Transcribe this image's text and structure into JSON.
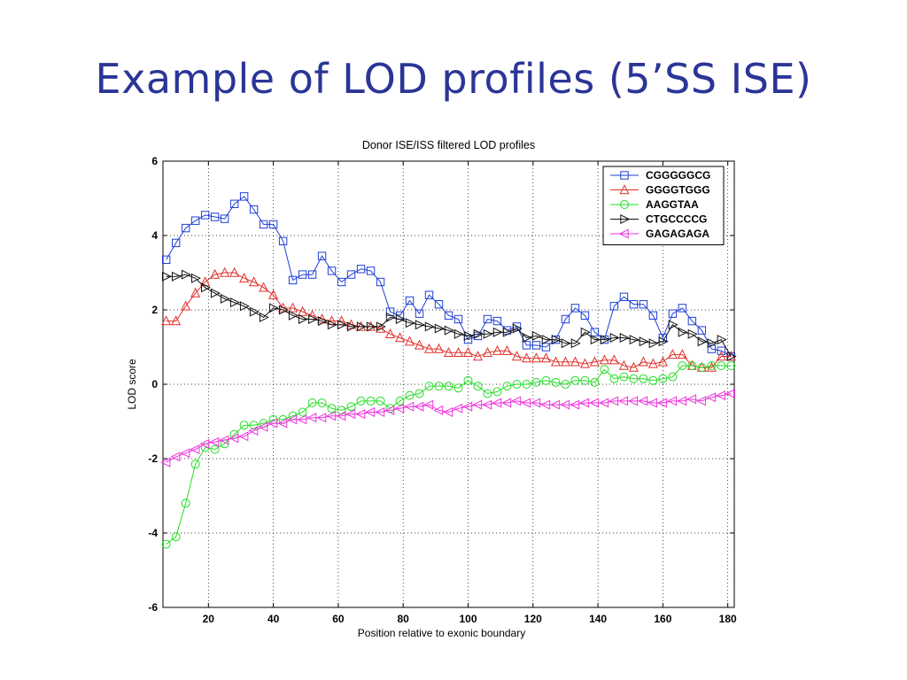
{
  "slide": {
    "title": "Example of LOD profiles (5’SS ISE)"
  },
  "chart_data": {
    "type": "line",
    "title": "Donor ISE/ISS filtered LOD profiles",
    "xlabel": "Position relative to exonic boundary",
    "ylabel": "LOD score",
    "xlim": [
      6,
      182
    ],
    "ylim": [
      -6,
      6
    ],
    "xticks": [
      20,
      40,
      60,
      80,
      100,
      120,
      140,
      160,
      180
    ],
    "yticks": [
      -6,
      -4,
      -2,
      0,
      2,
      4,
      6
    ],
    "grid": true,
    "legend_position": "top-right",
    "x": [
      7,
      10,
      13,
      16,
      19,
      22,
      25,
      28,
      31,
      34,
      37,
      40,
      43,
      46,
      49,
      52,
      55,
      58,
      61,
      64,
      67,
      70,
      73,
      76,
      79,
      82,
      85,
      88,
      91,
      94,
      97,
      100,
      103,
      106,
      109,
      112,
      115,
      118,
      121,
      124,
      127,
      130,
      133,
      136,
      139,
      142,
      145,
      148,
      151,
      154,
      157,
      160,
      163,
      166,
      169,
      172,
      175,
      178,
      181
    ],
    "series": [
      {
        "name": "CGGGGGCG",
        "color": "#1f3fd6",
        "marker": "square",
        "values": [
          3.35,
          3.8,
          4.2,
          4.4,
          4.55,
          4.5,
          4.45,
          4.85,
          5.05,
          4.7,
          4.3,
          4.3,
          3.85,
          2.8,
          2.95,
          2.95,
          3.45,
          3.05,
          2.75,
          2.95,
          3.1,
          3.05,
          2.75,
          1.95,
          1.85,
          2.25,
          1.9,
          2.4,
          2.15,
          1.85,
          1.75,
          1.2,
          1.3,
          1.75,
          1.7,
          1.45,
          1.55,
          1.05,
          1.05,
          1.0,
          1.2,
          1.75,
          2.05,
          1.85,
          1.4,
          1.2,
          2.1,
          2.35,
          2.15,
          2.15,
          1.85,
          1.25,
          1.9,
          2.05,
          1.7,
          1.45,
          0.95,
          0.9,
          0.75
        ]
      },
      {
        "name": "GGGGTGGG",
        "color": "#e0302a",
        "marker": "triangle-up",
        "values": [
          1.7,
          1.7,
          2.1,
          2.45,
          2.75,
          2.95,
          3.0,
          3.0,
          2.85,
          2.75,
          2.6,
          2.4,
          2.05,
          2.05,
          1.95,
          1.85,
          1.75,
          1.7,
          1.7,
          1.6,
          1.55,
          1.55,
          1.5,
          1.35,
          1.25,
          1.15,
          1.05,
          0.95,
          0.95,
          0.85,
          0.85,
          0.85,
          0.75,
          0.85,
          0.9,
          0.9,
          0.75,
          0.7,
          0.7,
          0.7,
          0.6,
          0.6,
          0.6,
          0.55,
          0.6,
          0.65,
          0.65,
          0.5,
          0.45,
          0.6,
          0.55,
          0.6,
          0.8,
          0.8,
          0.5,
          0.45,
          0.45,
          0.75,
          0.75
        ]
      },
      {
        "name": "AAGGTAA",
        "color": "#22dd22",
        "marker": "circle",
        "values": [
          -4.3,
          -4.1,
          -3.2,
          -2.15,
          -1.7,
          -1.75,
          -1.6,
          -1.35,
          -1.1,
          -1.1,
          -1.05,
          -0.95,
          -0.95,
          -0.85,
          -0.75,
          -0.5,
          -0.5,
          -0.65,
          -0.7,
          -0.6,
          -0.45,
          -0.45,
          -0.45,
          -0.65,
          -0.45,
          -0.3,
          -0.25,
          -0.05,
          -0.05,
          -0.05,
          -0.1,
          0.1,
          -0.05,
          -0.25,
          -0.2,
          -0.05,
          0.0,
          0.0,
          0.05,
          0.1,
          0.05,
          0.0,
          0.1,
          0.1,
          0.05,
          0.4,
          0.15,
          0.2,
          0.15,
          0.15,
          0.1,
          0.15,
          0.2,
          0.5,
          0.5,
          0.45,
          0.5,
          0.5,
          0.5
        ]
      },
      {
        "name": "CTGCCCCG",
        "color": "#111111",
        "marker": "triangle-right",
        "values": [
          2.9,
          2.9,
          2.95,
          2.85,
          2.6,
          2.45,
          2.3,
          2.2,
          2.1,
          1.95,
          1.8,
          2.05,
          2.0,
          1.85,
          1.75,
          1.75,
          1.7,
          1.6,
          1.6,
          1.55,
          1.55,
          1.55,
          1.55,
          1.8,
          1.75,
          1.65,
          1.6,
          1.55,
          1.5,
          1.45,
          1.35,
          1.3,
          1.35,
          1.35,
          1.4,
          1.4,
          1.5,
          1.25,
          1.3,
          1.2,
          1.2,
          1.1,
          1.1,
          1.4,
          1.2,
          1.2,
          1.25,
          1.25,
          1.2,
          1.15,
          1.1,
          1.15,
          1.6,
          1.4,
          1.35,
          1.15,
          1.1,
          1.2,
          0.75
        ]
      },
      {
        "name": "GAGAGAGA",
        "color": "#ee33dd",
        "marker": "triangle-left",
        "values": [
          -2.1,
          -1.95,
          -1.85,
          -1.75,
          -1.6,
          -1.55,
          -1.5,
          -1.45,
          -1.4,
          -1.25,
          -1.15,
          -1.05,
          -1.05,
          -0.95,
          -0.95,
          -0.9,
          -0.9,
          -0.85,
          -0.85,
          -0.8,
          -0.8,
          -0.75,
          -0.75,
          -0.7,
          -0.65,
          -0.6,
          -0.6,
          -0.55,
          -0.7,
          -0.75,
          -0.65,
          -0.6,
          -0.55,
          -0.55,
          -0.5,
          -0.5,
          -0.45,
          -0.5,
          -0.5,
          -0.55,
          -0.55,
          -0.55,
          -0.55,
          -0.5,
          -0.5,
          -0.5,
          -0.45,
          -0.45,
          -0.45,
          -0.45,
          -0.5,
          -0.5,
          -0.45,
          -0.45,
          -0.4,
          -0.45,
          -0.35,
          -0.3,
          -0.25
        ]
      }
    ]
  }
}
